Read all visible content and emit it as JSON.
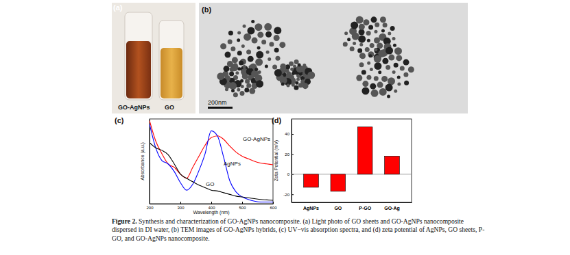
{
  "chart_data": [
    {
      "type": "line",
      "panel_label": "(c)",
      "x_label": "Wavelength (nm)",
      "y_label": "Absorbance (a.u.)",
      "x": [
        200,
        220,
        240,
        260,
        280,
        300,
        320,
        340,
        360,
        380,
        400,
        420,
        440,
        460,
        480,
        500,
        520,
        540,
        560,
        580,
        600
      ],
      "series": [
        {
          "name": "GO-AgNPs",
          "color": "#ff0000",
          "values": [
            0.98,
            0.74,
            0.59,
            0.47,
            0.43,
            0.35,
            0.3,
            0.43,
            0.56,
            0.69,
            0.78,
            0.8,
            0.76,
            0.68,
            0.61,
            0.56,
            0.53,
            0.5,
            0.48,
            0.47,
            0.46
          ]
        },
        {
          "name": "AgNPs",
          "color": "#0000ff",
          "values": [
            0.94,
            0.66,
            0.51,
            0.47,
            0.38,
            0.25,
            0.16,
            0.23,
            0.39,
            0.59,
            0.86,
            0.8,
            0.55,
            0.27,
            0.14,
            0.08,
            0.05,
            0.03,
            0.02,
            0.02,
            0.02
          ]
        },
        {
          "name": "GO",
          "color": "#000000",
          "values": [
            0.72,
            0.66,
            0.63,
            0.58,
            0.47,
            0.35,
            0.3,
            0.26,
            0.22,
            0.19,
            0.16,
            0.15,
            0.13,
            0.11,
            0.09,
            0.08,
            0.07,
            0.06,
            0.05,
            0.045,
            0.04
          ]
        }
      ],
      "xlim": [
        200,
        600
      ],
      "xticks": [
        200,
        300,
        400,
        500,
        600
      ],
      "ylim": [
        0,
        1
      ],
      "tick_labels": "x"
    },
    {
      "type": "bar",
      "panel_label": "(d)",
      "y_label": "Zeta Potential (mV)",
      "categories": [
        "AgNPs",
        "GO",
        "P-GO",
        "GO-Ag"
      ],
      "values": [
        -13,
        -17,
        47,
        18
      ],
      "color": "#ff0000",
      "ylim": [
        -28,
        55
      ],
      "yticks": [
        -20,
        0,
        20,
        40
      ]
    }
  ],
  "figure": {
    "panel_labels": [
      "(a)",
      "(b)"
    ],
    "photo_labels": [
      "GO-AgNPs",
      "GO"
    ],
    "scale_bar": "200nm",
    "caption_label": "Figure 2.",
    "caption": "Synthesis and characterization of GO-AgNPs nanocomposite. (a) Light photo of GO sheets and GO-AgNPs nanocomposite dispersed in DI water, (b) TEM images of GO-AgNPs hybrids, (c) UV−vis absorption spectra, and (d) zeta potential of AgNPs, GO sheets, P-GO, and GO-AgNPs nanocomposite."
  }
}
